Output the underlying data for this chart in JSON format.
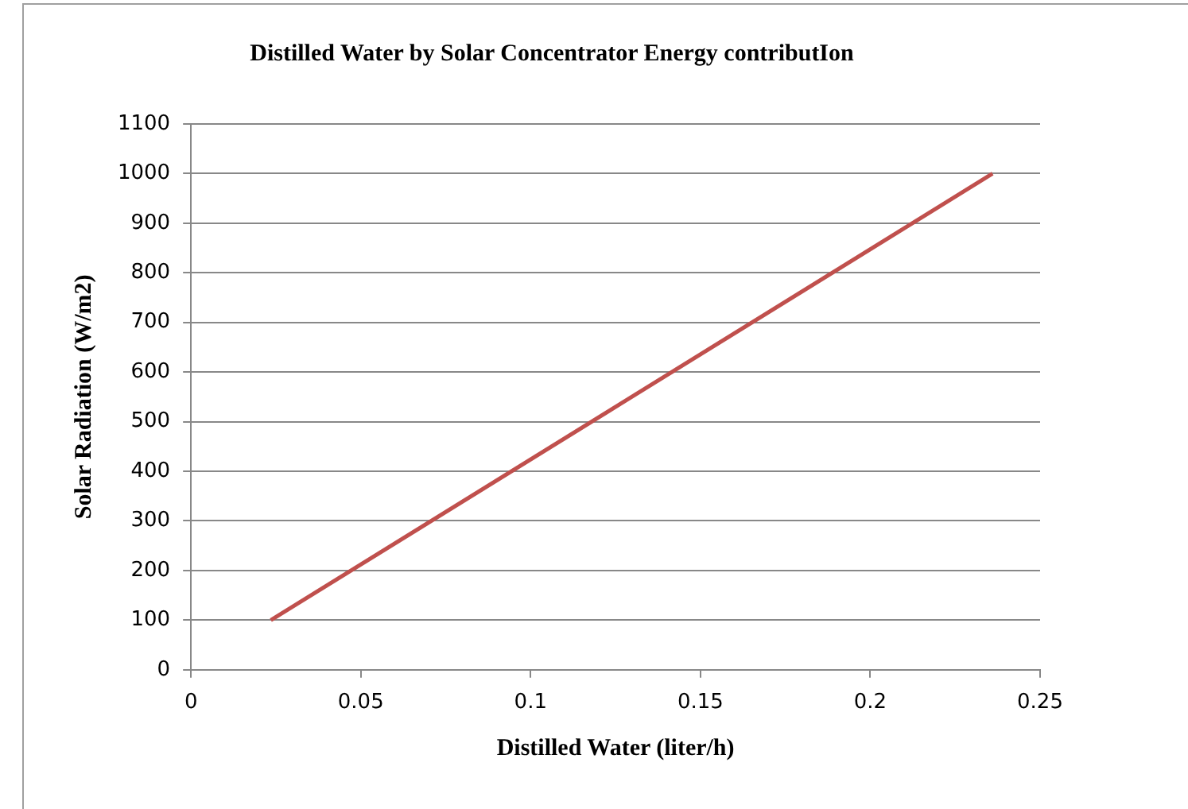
{
  "chart_data": {
    "type": "line",
    "title": "Distilled Water by Solar Concentrator Energy contributIon",
    "xlabel": "Distilled Water (liter/h)",
    "ylabel": "Solar Radiation (W/m2)",
    "x": [
      0.0235,
      0.236
    ],
    "series": [
      {
        "color": "#c0504d",
        "values": [
          100,
          1000
        ]
      }
    ],
    "xlim": [
      0,
      0.25
    ],
    "xticks": [
      0,
      0.05,
      0.1,
      0.15,
      0.2,
      0.25
    ],
    "ylim": [
      0,
      1100
    ],
    "yticks": [
      0,
      100,
      200,
      300,
      400,
      500,
      600,
      700,
      800,
      900,
      1000,
      1100
    ],
    "grid": "y",
    "legend": false,
    "marker": "none",
    "line_style": "solid"
  }
}
